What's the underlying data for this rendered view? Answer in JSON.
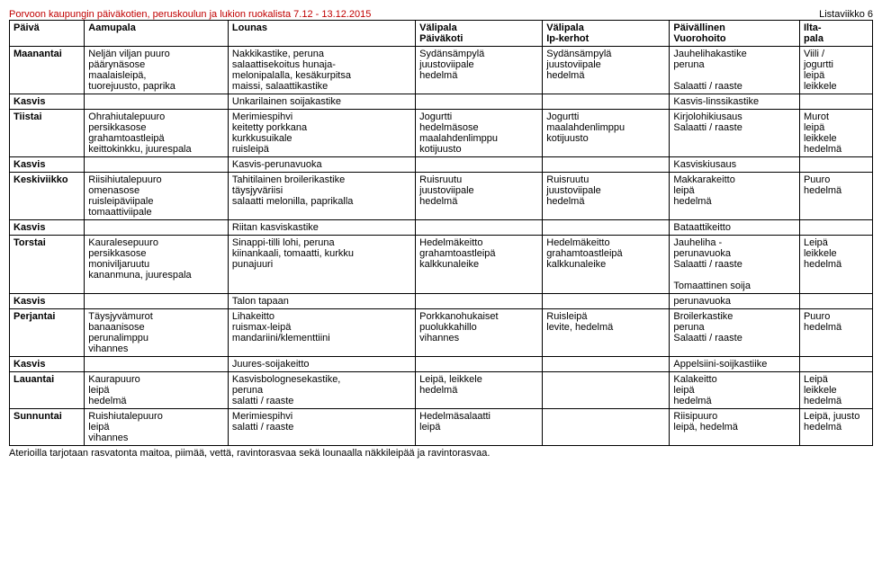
{
  "title": "Porvoon kaupungin päiväkotien, peruskoulun ja lukion ruokalista 7.12 - 13.12.2015",
  "listaviikko": "Listaviikko 6",
  "columns": [
    [
      "Päivä",
      ""
    ],
    [
      "Aamupala",
      ""
    ],
    [
      "Lounas",
      ""
    ],
    [
      "Välipala",
      "Päiväkoti"
    ],
    [
      "Välipala",
      "Ip-kerhot"
    ],
    [
      "Päivällinen",
      "Vuorohoito"
    ],
    [
      "Ilta-",
      "pala"
    ]
  ],
  "rows": [
    {
      "c": [
        "Maanantai",
        "Neljän viljan puuro\npäärynäsose\nmaalaisleipä,\ntuorejuusto, paprika",
        "Nakkikastike, peruna\nsalaattisekoitus hunaja-\nmelonipalalla, kesäkurpitsa\nmaissi, salaattikastike",
        "Sydänsämpylä\njuustoviipale\nhedelmä",
        "Sydänsämpylä\njuustoviipale\nhedelmä",
        "Jauhelihakastike\nperuna\n\nSalaatti / raaste",
        "Viili /\njogurtti\nleipä\nleikkele"
      ]
    },
    {
      "c": [
        "Kasvis",
        "",
        "Unkarilainen soijakastike",
        "",
        "",
        "Kasvis-linssikastike",
        ""
      ]
    },
    {
      "c": [
        "Tiistai",
        "Ohrahiutalepuuro\npersikkasose\ngrahamtoastleipä\nkeittokinkku, juurespala",
        "Merimiespihvi\nkeitetty porkkana\nkurkkusuikale\nruisleipä",
        "Jogurtti\nhedelmäsose\nmaalahdenlimppu\nkotijuusto",
        "Jogurtti\nmaalahdenlimppu\nkotijuusto",
        "Kirjolohikiusaus\nSalaatti / raaste",
        "Murot\nleipä\nleikkele\nhedelmä"
      ]
    },
    {
      "c": [
        "Kasvis",
        "",
        "Kasvis-perunavuoka",
        "",
        "",
        "Kasviskiusaus",
        ""
      ]
    },
    {
      "c": [
        "Keskiviikko",
        "Riisihiutalepuuro\nomenasose\nruisleipäviipale\ntomaattiviipale",
        "Tahitilainen broilerikastike\ntäysjyväriisi\nsalaatti melonilla, paprikalla",
        "Ruisruutu\njuustoviipale\nhedelmä",
        "Ruisruutu\njuustoviipale\nhedelmä",
        "Makkarakeitto\nleipä\nhedelmä",
        "Puuro\nhedelmä"
      ]
    },
    {
      "c": [
        "Kasvis",
        "",
        "Riitan kasviskastike",
        "",
        "",
        "Bataattikeitto",
        ""
      ]
    },
    {
      "c": [
        "Torstai",
        "Kauralesepuuro\npersikkasose\nmoniviljaruutu\nkananmuna, juurespala",
        "Sinappi-tilli lohi, peruna\nkiinankaali, tomaatti, kurkku\npunajuuri",
        "Hedelmäkeitto\ngrahamtoastleipä\nkalkkunaleike",
        "Hedelmäkeitto\ngrahamtoastleipä\nkalkkunaleike",
        "Jauheliha -\nperunavuoka\nSalaatti / raaste\n\nTomaattinen soija",
        "Leipä\nleikkele\nhedelmä"
      ]
    },
    {
      "c": [
        "Kasvis",
        "",
        "Talon tapaan",
        "",
        "",
        "perunavuoka",
        ""
      ]
    },
    {
      "c": [
        "Perjantai",
        "Täysjyvämurot\nbanaanisose\nperunalimppu\nvihannes",
        "Lihakeitto\nruismax-leipä\nmandariini/klementtiini",
        "Porkkanohukaiset\npuolukkahillo\nvihannes",
        "Ruisleipä\nlevite, hedelmä",
        "Broilerkastike\nperuna\nSalaatti / raaste",
        "Puuro\nhedelmä"
      ]
    },
    {
      "c": [
        "Kasvis",
        "",
        "Juures-soijakeitto",
        "",
        "",
        "Appelsiini-soijkastiike",
        ""
      ]
    },
    {
      "c": [
        "Lauantai",
        "Kaurapuuro\nleipä\nhedelmä",
        "Kasvisbolognesekastike,\nperuna\nsalatti / raaste",
        "Leipä, leikkele\nhedelmä",
        "",
        "Kalakeitto\nleipä\nhedelmä",
        "Leipä\nleikkele\nhedelmä"
      ]
    },
    {
      "c": [
        "Sunnuntai",
        "Ruishiutalepuuro\nleipä\nvihannes",
        "Merimiespihvi\nsalatti / raaste",
        "Hedelmäsalaatti\nleipä",
        "",
        "Riisipuuro\nleipä, hedelmä",
        "Leipä, juusto\nhedelmä"
      ]
    }
  ],
  "footer": "Aterioilla tarjotaan rasvatonta maitoa, piimää, vettä, ravintorasvaa sekä lounaalla näkkileipää ja ravintorasvaa."
}
